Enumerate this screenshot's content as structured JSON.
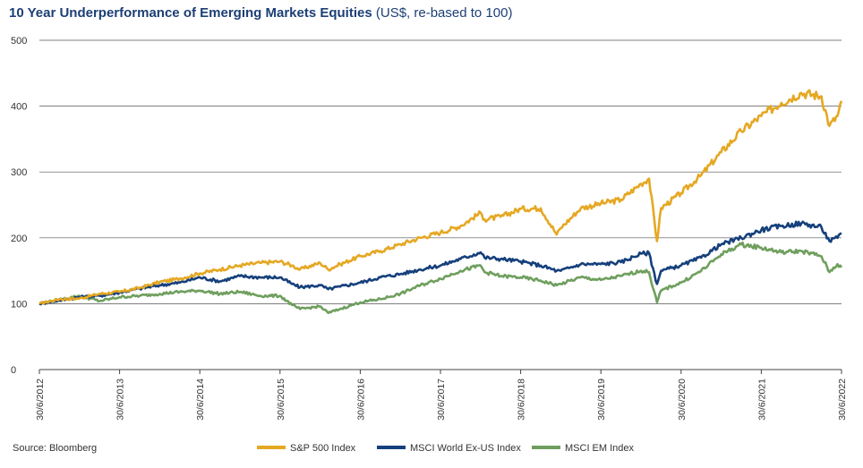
{
  "title": {
    "main": "10 Year Underperformance of Emerging Markets Equities",
    "sub": "(US$, re-based to 100)"
  },
  "source": "Source: Bloomberg",
  "chart_data": {
    "type": "line",
    "title": "10 Year Underperformance of Emerging Markets Equities (US$, re-based to 100)",
    "ylim": [
      0,
      500
    ],
    "yticks": [
      0,
      100,
      200,
      300,
      400,
      500
    ],
    "xlim": [
      2012.5,
      2022.5
    ],
    "xticks": [
      2012.5,
      2013.5,
      2014.5,
      2015.5,
      2016.5,
      2017.5,
      2018.5,
      2019.5,
      2020.5,
      2021.5,
      2022.5
    ],
    "xticklabels": [
      "30/6/2012",
      "30/6/2013",
      "30/6/2014",
      "30/6/2015",
      "30/6/2016",
      "30/6/2017",
      "30/6/2018",
      "30/6/2019",
      "30/6/2020",
      "30/6/2021",
      "30/6/2022"
    ],
    "grid": "horizontal",
    "legend_position": "bottom",
    "x": [
      2012.5,
      2012.75,
      2013.0,
      2013.25,
      2013.5,
      2013.75,
      2014.0,
      2014.25,
      2014.5,
      2014.75,
      2015.0,
      2015.25,
      2015.5,
      2015.65,
      2015.75,
      2016.0,
      2016.1,
      2016.25,
      2016.5,
      2016.75,
      2017.0,
      2017.25,
      2017.5,
      2017.75,
      2018.0,
      2018.05,
      2018.25,
      2018.5,
      2018.75,
      2018.95,
      2019.0,
      2019.25,
      2019.5,
      2019.75,
      2020.0,
      2020.1,
      2020.2,
      2020.25,
      2020.5,
      2020.75,
      2021.0,
      2021.25,
      2021.5,
      2021.75,
      2022.0,
      2022.25,
      2022.35,
      2022.45,
      2022.5
    ],
    "series": [
      {
        "name": "S&P 500 Index",
        "color": "#e5a823",
        "values": [
          100,
          107,
          108,
          115,
          118,
          124,
          133,
          138,
          146,
          152,
          158,
          162,
          164,
          158,
          152,
          162,
          152,
          160,
          172,
          180,
          190,
          200,
          208,
          218,
          238,
          228,
          232,
          244,
          245,
          205,
          215,
          245,
          252,
          258,
          282,
          290,
          195,
          245,
          268,
          295,
          330,
          362,
          385,
          405,
          420,
          415,
          370,
          385,
          408
        ]
      },
      {
        "name": "MSCI World Ex-US Index",
        "color": "#15407c",
        "values": [
          100,
          105,
          110,
          112,
          117,
          123,
          128,
          132,
          140,
          134,
          142,
          140,
          140,
          130,
          125,
          128,
          122,
          126,
          132,
          140,
          145,
          152,
          158,
          168,
          178,
          170,
          168,
          164,
          158,
          150,
          150,
          160,
          160,
          163,
          176,
          177,
          130,
          150,
          158,
          170,
          190,
          200,
          212,
          218,
          222,
          216,
          195,
          200,
          207
        ]
      },
      {
        "name": "MSCI EM Index",
        "color": "#6f9f5e",
        "values": [
          100,
          106,
          112,
          104,
          110,
          112,
          115,
          118,
          120,
          115,
          118,
          112,
          112,
          98,
          92,
          96,
          86,
          92,
          102,
          107,
          115,
          128,
          138,
          150,
          158,
          148,
          142,
          140,
          135,
          128,
          130,
          140,
          136,
          142,
          150,
          148,
          102,
          120,
          132,
          150,
          175,
          190,
          185,
          178,
          180,
          172,
          148,
          160,
          155
        ]
      }
    ]
  }
}
